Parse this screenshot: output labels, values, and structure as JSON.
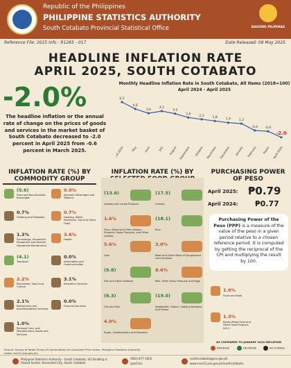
{
  "header": {
    "republic": "Republic of the Philippines",
    "agency": "PHILIPPINE STATISTICS AUTHORITY",
    "office": "South Cotabato Provincial Statistical Office",
    "right_logo_text": "BAGONG PILIPINAS"
  },
  "meta": {
    "reference": "Reference File: 2025  Info - R1265 - 017",
    "date_released": "Date Released:  08 May 2025"
  },
  "title": {
    "line1": "HEADLINE INFLATION RATE",
    "line2": "APRIL 2025, SOUTH COTABATO"
  },
  "headline": {
    "rate": "-2.0%",
    "description": "The headline inflation or the annual rate of change on the prices of goods and services in the market basket of South Cotabato decreased to -2.0 percent in April 2025 from -0.6 percent in March 2025."
  },
  "chart_data": {
    "type": "line",
    "title": "Monthly Headline Inflation Rate in South Cotabato, All Items (2018=100)",
    "subtitle": "April 2024 - April 2025",
    "categories": [
      "April 2024",
      "May",
      "June",
      "July",
      "August",
      "September",
      "October",
      "November",
      "December",
      "January",
      "February",
      "March",
      "April 2025"
    ],
    "values": [
      6.2,
      4.6,
      3.6,
      4.1,
      3.5,
      2.6,
      2.2,
      1.8,
      1.4,
      1.2,
      -0.4,
      -0.6,
      -2.0
    ],
    "labels": [
      "6.2",
      "4.6",
      "3.6",
      "4.1",
      "3.5",
      "2.6",
      "2.2",
      "1.8",
      "1.4",
      "1.2",
      "-0.4",
      "-0.6",
      "-2.0"
    ],
    "ylim": [
      -3,
      7
    ],
    "line_color": "#2d5fa3",
    "last_label_color": "#d22b2b"
  },
  "commodity": {
    "heading": "INFLATION RATE (%) BY COMMODITY GROUP",
    "items": [
      {
        "value": "(5.6)",
        "label": "Food and Non-Alcoholic Beverages",
        "color": "#2b7a34"
      },
      {
        "value": "0.9%",
        "label": "Alcoholic Beverages and Tobacco",
        "color": "#c94a2a"
      },
      {
        "value": "0.7%",
        "label": "Clothing and Footwear",
        "color": "#333333"
      },
      {
        "value": "0.7%",
        "label": "Housing, Water, Electricity, Gas and Other Fuels",
        "color": "#c94a2a"
      },
      {
        "value": "1.3%",
        "label": "Furnishings, Household Equipment and Routine Household Maintenance",
        "color": "#333333"
      },
      {
        "value": "3.6%",
        "label": "Health",
        "color": "#c94a2a"
      },
      {
        "value": "(4.1)",
        "label": "Transport",
        "color": "#2b7a34"
      },
      {
        "value": "0.0%",
        "label": "Information and Communication",
        "color": "#333333"
      },
      {
        "value": "2.2%",
        "label": "Recreation, Sport and Culture",
        "color": "#c94a2a"
      },
      {
        "value": "3.1%",
        "label": "Education Services",
        "color": "#333333"
      },
      {
        "value": "2.1%",
        "label": "Restaurants and Accommodation Services",
        "color": "#333333"
      },
      {
        "value": "0.0%",
        "label": "Financial Services",
        "color": "#333333"
      },
      {
        "value": "1.0%",
        "label": "Personal Care, and Miscellaneous Goods and Services",
        "color": "#333333"
      }
    ]
  },
  "food": {
    "heading": "INFLATION RATE (%) BY SELECTED FOOD GROUP",
    "items": [
      {
        "value": "(13.6)",
        "label": "Cereals and Cereal Products",
        "color": "#2b7a34"
      },
      {
        "value": "(17.5)",
        "label": "Cereals",
        "color": "#2b7a34"
      },
      {
        "value": "1.6%",
        "label": "Flour, Bread and Other Bakery Products, Pasta Products, and Other Cereals",
        "color": "#c94a2a"
      },
      {
        "value": "(18.1)",
        "label": "Rice",
        "color": "#2b7a34"
      },
      {
        "value": "5.6%",
        "label": "Corn",
        "color": "#c94a2a"
      },
      {
        "value": "3.0%",
        "label": "Meat and Other Parts of Slaughtered Land Animals",
        "color": "#c94a2a"
      },
      {
        "value": "(9.8)",
        "label": "Fish and Other Seafood",
        "color": "#2b7a34"
      },
      {
        "value": "8.6%",
        "label": "Milk, Other Dairy Products and Eggs",
        "color": "#c94a2a"
      },
      {
        "value": "(6.3)",
        "label": "Oils and Fats",
        "color": "#2b7a34"
      },
      {
        "value": "(19.0)",
        "label": "Vegetables, Tubers, Cooking Bananas and Pulses",
        "color": "#2b7a34"
      },
      {
        "value": "4.0%",
        "label": "Sugar, Confectionery and Desserts",
        "color": "#c94a2a"
      }
    ],
    "extra": [
      {
        "value": "1.0%",
        "label": "Fruits and Nuts",
        "color": "#c94a2a"
      },
      {
        "value": "1.3%",
        "label": "Ready-Made Food and Other Food Products N.E.C.",
        "color": "#c94a2a"
      }
    ]
  },
  "ppp": {
    "heading": "PURCHASING POWER OF PESO",
    "april2025_label": "April 2025:",
    "april2025_value": "₱0.79",
    "april2024_label": "April 2024:",
    "april2024_value": "₱0.77",
    "definition_title": "Purchasing Power of the Peso (PPP)",
    "definition_body": "is a measure of the value of the peso in a given period relative to a chosen reference period. It is computed by getting the reciprocal of the CPI and multiplying the result by 100."
  },
  "legend": {
    "title": "AS COMPARED TO JANUARY 2024 INFLATION",
    "items": [
      {
        "label": "INCREASE",
        "color": "#c94a2a"
      },
      {
        "label": "DECREASE",
        "color": "#2b7a34"
      },
      {
        "label": "NO CHANGE",
        "color": "#222222"
      }
    ]
  },
  "source": "Source: Survey of Retail Prices of Commodities for Consumer Price Index, Philippine Statistics Authority (www. rsso12.psa.gov.ph)",
  "footer": {
    "address": "Philippine Statistics Authority - South Cotabato, SCI Building 4, Aliwalt Santos, Koronadal City, South Cotabato",
    "phone": "(083) 877-1603",
    "social": "/psa12sc",
    "email": "southcotabato@psa.gov.ph",
    "web": "www.rsso12.psa.gov.ph/southcotabato"
  }
}
